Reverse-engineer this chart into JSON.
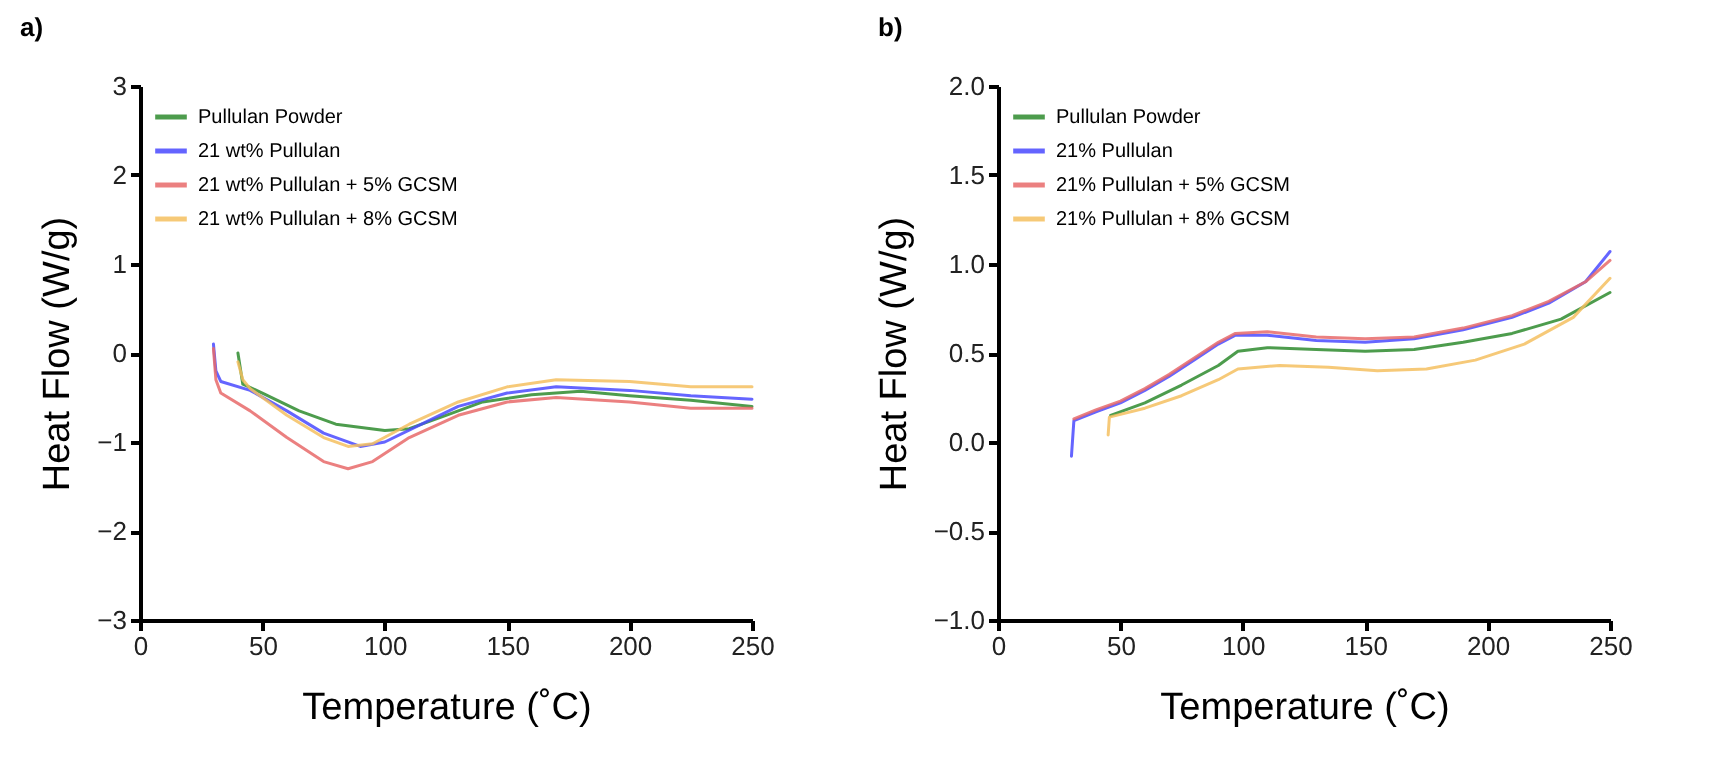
{
  "chart_data": [
    {
      "type": "line",
      "title": "a)",
      "xlabel": "Temperature (˚C)",
      "ylabel": "Heat Flow (W/g)",
      "xlim": [
        0,
        250
      ],
      "xticks": [
        0,
        50,
        100,
        150,
        200,
        250
      ],
      "ylim": [
        -3,
        3
      ],
      "yticks": [
        {
          "value": -3,
          "label": "−3"
        },
        {
          "value": -2,
          "label": "−2"
        },
        {
          "value": -1,
          "label": "−1"
        },
        0,
        1,
        2,
        3
      ],
      "grid": false,
      "legend": "top left",
      "series": [
        {
          "name": "Pullulan Powder",
          "color": "#2e8b2e",
          "x": [
            40,
            42,
            50,
            65,
            80,
            100,
            110,
            125,
            140,
            160,
            180,
            200,
            225,
            250
          ],
          "values": [
            0,
            -0.35,
            -0.45,
            -0.65,
            -0.8,
            -0.87,
            -0.85,
            -0.7,
            -0.55,
            -0.47,
            -0.43,
            -0.48,
            -0.53,
            -0.6
          ]
        },
        {
          "name": "21 wt% Pullulan",
          "color": "#4a4aff",
          "x": [
            30,
            31,
            33,
            45,
            60,
            75,
            90,
            100,
            115,
            130,
            150,
            170,
            200,
            225,
            250
          ],
          "values": [
            0.1,
            -0.2,
            -0.32,
            -0.42,
            -0.65,
            -0.9,
            -1.05,
            -1.0,
            -0.8,
            -0.6,
            -0.45,
            -0.38,
            -0.42,
            -0.48,
            -0.52
          ]
        },
        {
          "name": "21 wt% Pullulan + 5% GCSM",
          "color": "#e86a6a",
          "x": [
            30,
            31,
            33,
            45,
            60,
            75,
            85,
            95,
            110,
            130,
            150,
            170,
            200,
            225,
            250
          ],
          "values": [
            0.05,
            -0.3,
            -0.45,
            -0.65,
            -0.95,
            -1.22,
            -1.3,
            -1.22,
            -0.95,
            -0.7,
            -0.55,
            -0.5,
            -0.55,
            -0.62,
            -0.62
          ]
        },
        {
          "name": "21 wt% Pullulan + 8% GCSM",
          "color": "#f5c060",
          "x": [
            40,
            42,
            45,
            60,
            75,
            85,
            95,
            110,
            130,
            150,
            170,
            200,
            225,
            250
          ],
          "values": [
            -0.1,
            -0.3,
            -0.4,
            -0.7,
            -0.95,
            -1.05,
            -1.02,
            -0.8,
            -0.55,
            -0.38,
            -0.3,
            -0.32,
            -0.38,
            -0.38
          ]
        }
      ]
    },
    {
      "type": "line",
      "title": "b)",
      "xlabel": "Temperature (˚C)",
      "ylabel": "Heat Flow (W/g)",
      "xlim": [
        0,
        250
      ],
      "xticks": [
        0,
        50,
        100,
        150,
        200,
        250
      ],
      "ylim": [
        -1,
        2
      ],
      "yticks": [
        {
          "value": -1,
          "label": "−1.0"
        },
        {
          "value": -0.5,
          "label": "−0.5"
        },
        {
          "value": 0,
          "label": "0.0"
        },
        {
          "value": 0.5,
          "label": "0.5"
        },
        {
          "value": 1,
          "label": "1.0"
        },
        {
          "value": 1.5,
          "label": "1.5"
        },
        {
          "value": 2,
          "label": "2.0"
        }
      ],
      "grid": false,
      "legend": "top left",
      "series": [
        {
          "name": "Pullulan Powder",
          "color": "#2e8b2e",
          "x": [
            46,
            60,
            75,
            90,
            98,
            110,
            130,
            150,
            170,
            190,
            210,
            230,
            250
          ],
          "values": [
            0.15,
            0.22,
            0.32,
            0.43,
            0.51,
            0.53,
            0.52,
            0.51,
            0.52,
            0.56,
            0.61,
            0.69,
            0.84
          ]
        },
        {
          "name": "21% Pullulan",
          "color": "#4a4aff",
          "x": [
            30,
            31,
            40,
            50,
            60,
            70,
            80,
            90,
            97,
            110,
            130,
            150,
            170,
            190,
            210,
            225,
            240,
            250
          ],
          "values": [
            -0.08,
            0.12,
            0.17,
            0.22,
            0.29,
            0.37,
            0.46,
            0.55,
            0.6,
            0.6,
            0.57,
            0.56,
            0.58,
            0.63,
            0.7,
            0.78,
            0.9,
            1.07
          ]
        },
        {
          "name": "21% Pullulan + 5% GCSM",
          "color": "#e86a6a",
          "x": [
            31,
            40,
            50,
            60,
            70,
            80,
            90,
            97,
            110,
            130,
            150,
            170,
            190,
            210,
            225,
            240,
            250
          ],
          "values": [
            0.13,
            0.18,
            0.23,
            0.3,
            0.38,
            0.47,
            0.56,
            0.61,
            0.62,
            0.59,
            0.58,
            0.59,
            0.64,
            0.71,
            0.79,
            0.9,
            1.02
          ]
        },
        {
          "name": "21% Pullulan + 8% GCSM",
          "color": "#f5c060",
          "x": [
            45,
            45.5,
            60,
            75,
            90,
            98,
            115,
            135,
            155,
            175,
            195,
            215,
            235,
            250
          ],
          "values": [
            0.04,
            0.14,
            0.19,
            0.26,
            0.35,
            0.41,
            0.43,
            0.42,
            0.4,
            0.41,
            0.46,
            0.55,
            0.7,
            0.92
          ]
        }
      ]
    }
  ]
}
